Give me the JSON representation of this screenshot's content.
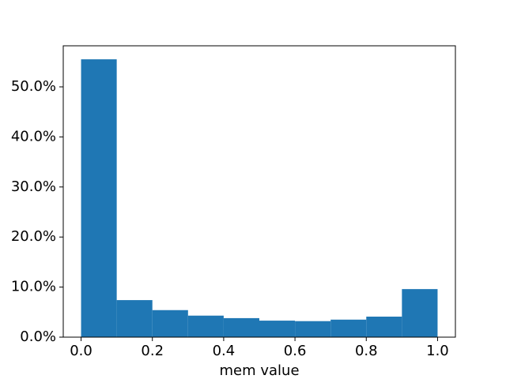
{
  "chart_data": {
    "type": "histogram",
    "x_label": "mem value",
    "bins": [
      0.0,
      0.1,
      0.2,
      0.3,
      0.4,
      0.5,
      0.6,
      0.7,
      0.8,
      0.9,
      1.0
    ],
    "values": [
      55.5,
      7.4,
      5.4,
      4.3,
      3.8,
      3.3,
      3.2,
      3.5,
      4.1,
      9.6
    ],
    "color": "#1f77b4",
    "xlim": [
      -0.05,
      1.05
    ],
    "ylim": [
      0,
      58.2
    ],
    "xticks": [
      {
        "value": 0,
        "label": "0.0"
      },
      {
        "value": 0.2,
        "label": "0.2"
      },
      {
        "value": 0.4,
        "label": "0.4"
      },
      {
        "value": 0.6,
        "label": "0.6"
      },
      {
        "value": 0.8,
        "label": "0.8"
      },
      {
        "value": 1.0,
        "label": "1.0"
      }
    ],
    "yticks": [
      {
        "value": 0,
        "label": "0.0%"
      },
      {
        "value": 10,
        "label": "10.0%"
      },
      {
        "value": 20,
        "label": "20.0%"
      },
      {
        "value": 30,
        "label": "30.0%"
      },
      {
        "value": 40,
        "label": "40.0%"
      },
      {
        "value": 50,
        "label": "50.0%"
      }
    ],
    "grid": false
  }
}
